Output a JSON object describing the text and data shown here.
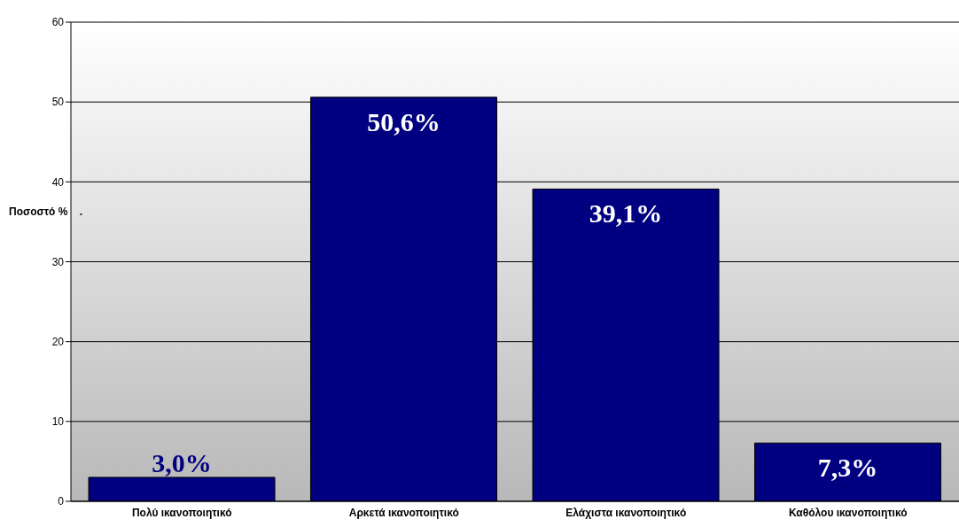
{
  "chart_data": {
    "type": "bar",
    "ylabel": "Ποσοστό %    .",
    "categories": [
      "Πολύ ικανοποιητικό",
      "Αρκετά ικανοποιητικό",
      "Ελάχιστα ικανοποιητικό",
      "Καθόλου ικανοποιητικό"
    ],
    "values": [
      3.0,
      50.6,
      39.1,
      7.3
    ],
    "value_labels": [
      "3,0%",
      "50,6%",
      "39,1%",
      "7,3%"
    ],
    "color": "#000080",
    "ylim": [
      0,
      60
    ],
    "yticks": [
      0,
      10,
      20,
      30,
      40,
      50,
      60
    ],
    "grid": "y"
  }
}
